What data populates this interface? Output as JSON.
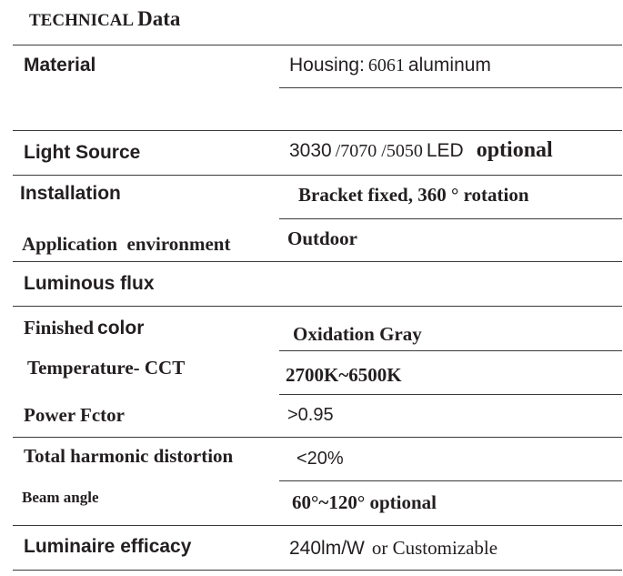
{
  "header": {
    "part1": "TECHNICAL",
    "part2": "Data"
  },
  "rows": {
    "material": {
      "label": "Material",
      "value_a": "Housing:",
      "value_b": "6061",
      "value_c": "aluminum"
    },
    "light_source": {
      "label": "Light Source",
      "value_a": "3030",
      "value_b": "/7070 /5050",
      "value_c": "LED",
      "value_d": "optional"
    },
    "installation": {
      "label": "Installation",
      "value": "Bracket fixed, 360 ° rotation"
    },
    "application": {
      "label": "Application  environment",
      "value": "Outdoor"
    },
    "luminous_flux": {
      "label": "Luminous flux",
      "value": ""
    },
    "finished_color": {
      "label_a": "Finished",
      "label_b": "color",
      "value": "Oxidation Gray"
    },
    "temperature": {
      "label": "Temperature- CCT",
      "value": "2700K~6500K"
    },
    "power_factor": {
      "label": "Power Fctor",
      "value": ">0.95"
    },
    "thd": {
      "label": "Total harmonic distortion",
      "value": "<20%"
    },
    "beam_angle": {
      "label": "Beam angle",
      "value": "60°~120° optional"
    },
    "efficacy": {
      "label": "Luminaire efficacy",
      "value_a": "240lm/W",
      "value_b": "or Customizable"
    }
  }
}
